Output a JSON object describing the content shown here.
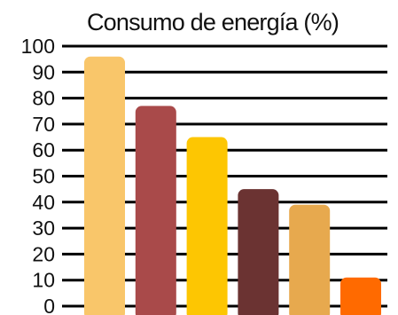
{
  "chart_data": {
    "type": "bar",
    "title": "Consumo de energía (%)",
    "xlabel": "",
    "ylabel": "",
    "categories": [
      "",
      "",
      "",
      "",
      "",
      ""
    ],
    "values": [
      96,
      77,
      65,
      45,
      39,
      11
    ],
    "colors": [
      "#F9C66A",
      "#A94A4A",
      "#FDC602",
      "#6B3332",
      "#E7A94E",
      "#FF6A00"
    ],
    "yticks": [
      0,
      10,
      20,
      30,
      40,
      50,
      60,
      70,
      80,
      90,
      100
    ],
    "ylim": [
      0,
      100
    ],
    "grid": true,
    "legend": "none"
  }
}
